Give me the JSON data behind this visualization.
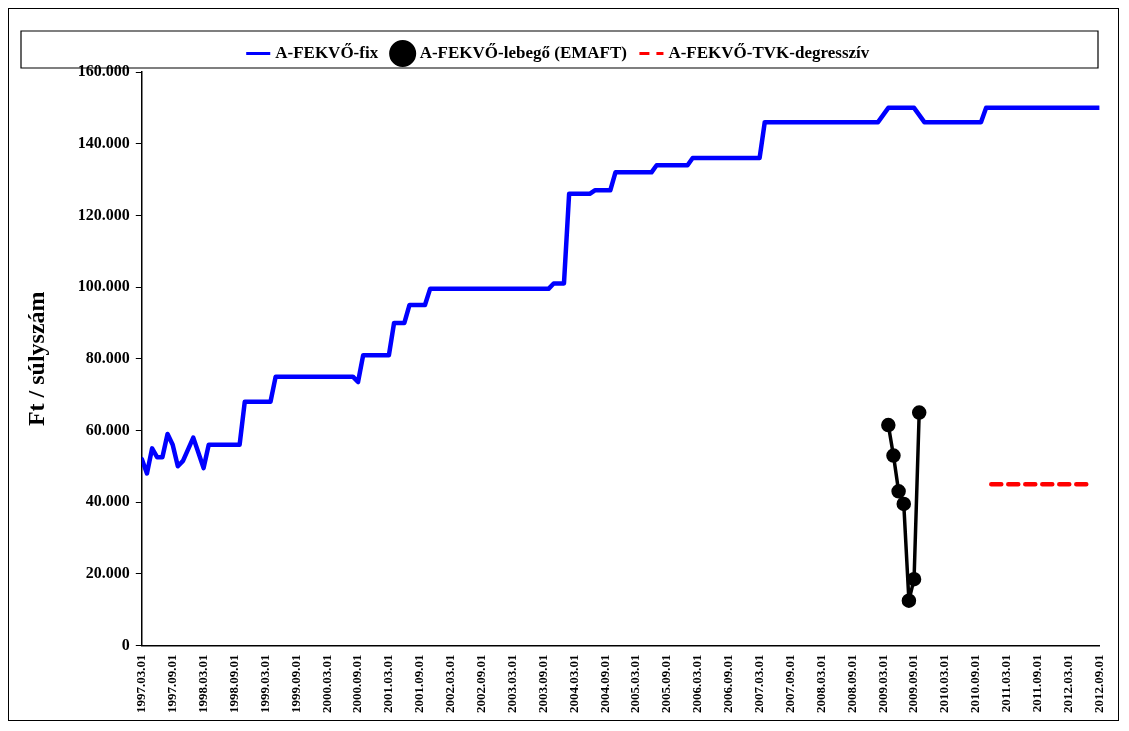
{
  "chart_data": {
    "type": "line",
    "ylabel": "Ft / súlyszám",
    "legend": "top",
    "grid": false,
    "xlim": [
      "1997-03",
      "2012-09"
    ],
    "xticks": [
      {
        "value": "1997-03",
        "label": "1997.03.01"
      },
      {
        "value": "1997-09",
        "label": "1997.09.01"
      },
      {
        "value": "1998-03",
        "label": "1998.03.01"
      },
      {
        "value": "1998-09",
        "label": "1998.09.01"
      },
      {
        "value": "1999-03",
        "label": "1999.03.01"
      },
      {
        "value": "1999-09",
        "label": "1999.09.01"
      },
      {
        "value": "2000-03",
        "label": "2000.03.01"
      },
      {
        "value": "2000-09",
        "label": "2000.09.01"
      },
      {
        "value": "2001-03",
        "label": "2001.03.01"
      },
      {
        "value": "2001-09",
        "label": "2001.09.01"
      },
      {
        "value": "2002-03",
        "label": "2002.03.01"
      },
      {
        "value": "2002-09",
        "label": "2002.09.01"
      },
      {
        "value": "2003-03",
        "label": "2003.03.01"
      },
      {
        "value": "2003-09",
        "label": "2003.09.01"
      },
      {
        "value": "2004-03",
        "label": "2004.03.01"
      },
      {
        "value": "2004-09",
        "label": "2004.09.01"
      },
      {
        "value": "2005-03",
        "label": "2005.03.01"
      },
      {
        "value": "2005-09",
        "label": "2005.09.01"
      },
      {
        "value": "2006-03",
        "label": "2006.03.01"
      },
      {
        "value": "2006-09",
        "label": "2006.09.01"
      },
      {
        "value": "2007-03",
        "label": "2007.03.01"
      },
      {
        "value": "2007-09",
        "label": "2007.09.01"
      },
      {
        "value": "2008-03",
        "label": "2008.03.01"
      },
      {
        "value": "2008-09",
        "label": "2008.09.01"
      },
      {
        "value": "2009-03",
        "label": "2009.03.01"
      },
      {
        "value": "2009-09",
        "label": "2009.09.01"
      },
      {
        "value": "2010-03",
        "label": "2010.03.01"
      },
      {
        "value": "2010-09",
        "label": "2010.09.01"
      },
      {
        "value": "2011-03",
        "label": "2011.03.01"
      },
      {
        "value": "2011-09",
        "label": "2011.09.01"
      },
      {
        "value": "2012-03",
        "label": "2012.03.01"
      },
      {
        "value": "2012-09",
        "label": "2012.09.01"
      }
    ],
    "ylim": [
      0,
      160000
    ],
    "yticks": [
      {
        "value": 0,
        "label": "0"
      },
      {
        "value": 20000,
        "label": "20.000"
      },
      {
        "value": 40000,
        "label": "40.000"
      },
      {
        "value": 60000,
        "label": "60.000"
      },
      {
        "value": 80000,
        "label": "80.000"
      },
      {
        "value": 100000,
        "label": "100.000"
      },
      {
        "value": 120000,
        "label": "120.000"
      },
      {
        "value": 140000,
        "label": "140.000"
      },
      {
        "value": 160000,
        "label": "160.000"
      }
    ],
    "series": [
      {
        "name": "A-FEKVŐ-fix",
        "color": "#0000ff",
        "marker": "none",
        "line_style": "solid",
        "x": [
          "1997-03",
          "1997-04",
          "1997-05",
          "1997-06",
          "1997-07",
          "1997-08",
          "1997-09",
          "1997-10",
          "1997-11",
          "1998-01",
          "1998-03",
          "1998-04",
          "1998-10",
          "1998-11",
          "1999-04",
          "1999-05",
          "2000-08",
          "2000-09",
          "2000-10",
          "2001-03",
          "2001-04",
          "2001-06",
          "2001-07",
          "2001-10",
          "2001-11",
          "2003-10",
          "2003-11",
          "2004-01",
          "2004-02",
          "2004-06",
          "2004-07",
          "2004-10",
          "2004-11",
          "2005-06",
          "2005-07",
          "2006-01",
          "2006-02",
          "2006-08",
          "2007-03",
          "2007-04",
          "2009-02",
          "2009-04",
          "2009-09",
          "2009-11",
          "2010-10",
          "2010-11",
          "2012-09"
        ],
        "values": [
          52000,
          48000,
          55000,
          52500,
          52500,
          59000,
          56000,
          50000,
          51500,
          58000,
          49500,
          56000,
          56000,
          68000,
          68000,
          75000,
          75000,
          73500,
          81000,
          81000,
          90000,
          90000,
          95000,
          95000,
          99500,
          99500,
          101000,
          101000,
          126000,
          126000,
          127000,
          127000,
          132000,
          132000,
          134000,
          134000,
          136000,
          136000,
          136000,
          146000,
          146000,
          150000,
          150000,
          146000,
          146000,
          150000,
          150000
        ]
      },
      {
        "name": "A-FEKVŐ-lebegő (EMAFT)",
        "color": "#000000",
        "marker": "circle",
        "line_style": "solid",
        "x": [
          "2009-04",
          "2009-05",
          "2009-06",
          "2009-07",
          "2009-08",
          "2009-09",
          "2009-10"
        ],
        "values": [
          61500,
          53000,
          43000,
          39500,
          12500,
          18500,
          65000
        ]
      },
      {
        "name": "A-FEKVŐ-TVK-degresszív",
        "color": "#ff0000",
        "marker": "none",
        "line_style": "dashed",
        "x": [
          "2010-12",
          "2012-07"
        ],
        "values": [
          45000,
          45000
        ]
      }
    ]
  }
}
